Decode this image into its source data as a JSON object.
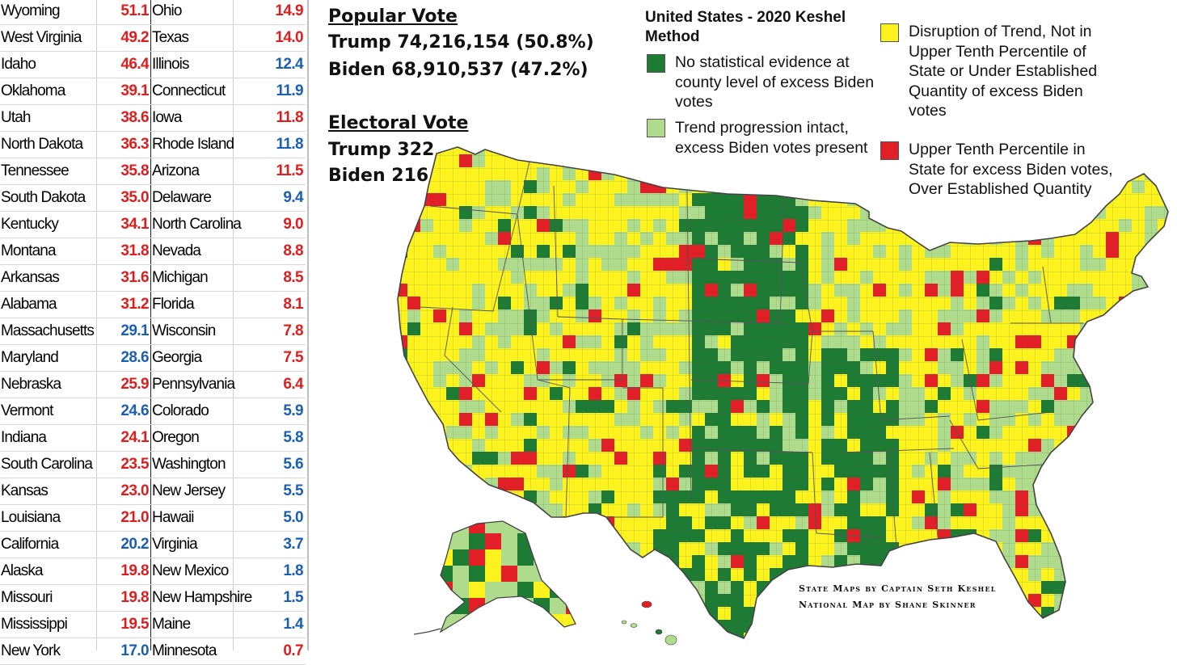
{
  "table": {
    "rows": [
      {
        "state1": "Wyoming",
        "value1": "51.1",
        "color1": "red",
        "state2": "Ohio",
        "value2": "14.9",
        "color2": "red"
      },
      {
        "state1": "West Virginia",
        "value1": "49.2",
        "color1": "red",
        "state2": "Texas",
        "value2": "14.0",
        "color2": "red"
      },
      {
        "state1": "Idaho",
        "value1": "46.4",
        "color1": "red",
        "state2": "Illinois",
        "value2": "12.4",
        "color2": "blue"
      },
      {
        "state1": "Oklahoma",
        "value1": "39.1",
        "color1": "red",
        "state2": "Connecticut",
        "value2": "11.9",
        "color2": "blue"
      },
      {
        "state1": "Utah",
        "value1": "38.6",
        "color1": "red",
        "state2": "Iowa",
        "value2": "11.8",
        "color2": "red"
      },
      {
        "state1": "North Dakota",
        "value1": "36.3",
        "color1": "red",
        "state2": "Rhode Island",
        "value2": "11.8",
        "color2": "blue"
      },
      {
        "state1": "Tennessee",
        "value1": "35.8",
        "color1": "red",
        "state2": "Arizona",
        "value2": "11.5",
        "color2": "red"
      },
      {
        "state1": "South Dakota",
        "value1": "35.0",
        "color1": "red",
        "state2": "Delaware",
        "value2": "9.4",
        "color2": "blue"
      },
      {
        "state1": "Kentucky",
        "value1": "34.1",
        "color1": "red",
        "state2": "North Carolina",
        "value2": "9.0",
        "color2": "red"
      },
      {
        "state1": "Montana",
        "value1": "31.8",
        "color1": "red",
        "state2": "Nevada",
        "value2": "8.8",
        "color2": "red"
      },
      {
        "state1": "Arkansas",
        "value1": "31.6",
        "color1": "red",
        "state2": "Michigan",
        "value2": "8.5",
        "color2": "red"
      },
      {
        "state1": "Alabama",
        "value1": "31.2",
        "color1": "red",
        "state2": "Florida",
        "value2": "8.1",
        "color2": "red"
      },
      {
        "state1": "Massachusetts",
        "value1": "29.1",
        "color1": "blue",
        "state2": "Wisconsin",
        "value2": "7.8",
        "color2": "red"
      },
      {
        "state1": "Maryland",
        "value1": "28.6",
        "color1": "blue",
        "state2": "Georgia",
        "value2": "7.5",
        "color2": "red"
      },
      {
        "state1": "Nebraska",
        "value1": "25.9",
        "color1": "red",
        "state2": "Pennsylvania",
        "value2": "6.4",
        "color2": "red"
      },
      {
        "state1": "Vermont",
        "value1": "24.6",
        "color1": "blue",
        "state2": "Colorado",
        "value2": "5.9",
        "color2": "blue"
      },
      {
        "state1": "Indiana",
        "value1": "24.1",
        "color1": "red",
        "state2": "Oregon",
        "value2": "5.8",
        "color2": "blue"
      },
      {
        "state1": "South Carolina",
        "value1": "23.5",
        "color1": "red",
        "state2": "Washington",
        "value2": "5.6",
        "color2": "blue"
      },
      {
        "state1": "Kansas",
        "value1": "23.0",
        "color1": "red",
        "state2": "New Jersey",
        "value2": "5.5",
        "color2": "blue"
      },
      {
        "state1": "Louisiana",
        "value1": "21.0",
        "color1": "red",
        "state2": "Hawaii",
        "value2": "5.0",
        "color2": "blue"
      },
      {
        "state1": "California",
        "value1": "20.2",
        "color1": "blue",
        "state2": "Virginia",
        "value2": "3.7",
        "color2": "blue"
      },
      {
        "state1": "Alaska",
        "value1": "19.8",
        "color1": "red",
        "state2": "New Mexico",
        "value2": "1.8",
        "color2": "blue"
      },
      {
        "state1": "Missouri",
        "value1": "19.8",
        "color1": "red",
        "state2": "New Hampshire",
        "value2": "1.5",
        "color2": "blue"
      },
      {
        "state1": "Mississippi",
        "value1": "19.5",
        "color1": "red",
        "state2": "Maine",
        "value2": "1.4",
        "color2": "blue"
      },
      {
        "state1": "New York",
        "value1": "17.0",
        "color1": "blue",
        "state2": "Minnesota",
        "value2": "0.7",
        "color2": "red"
      }
    ]
  },
  "popular_vote": {
    "heading": "Popular Vote",
    "trump": "Trump 74,216,154 (50.8%)",
    "biden": "Biden 68,910,537 (47.2%)"
  },
  "electoral_vote": {
    "heading": "Electoral Vote",
    "trump": "Trump 322",
    "biden": "Biden 216"
  },
  "legend": {
    "title": "United States - 2020 Keshel Method",
    "items": [
      {
        "key": "dark_green",
        "color": "#1e7b34",
        "text": "No statistical evidence at county level of excess Biden votes"
      },
      {
        "key": "light_green",
        "color": "#aedc8c",
        "text": "Trend progression intact, excess Biden votes present"
      },
      {
        "key": "yellow",
        "color": "#fbf21e",
        "text": "Disruption of Trend, Not in Upper Tenth Percentile of State or Under Established Quantity of excess Biden votes"
      },
      {
        "key": "red",
        "color": "#e21f26",
        "text": "Upper Tenth Percentile in State for excess Biden votes, Over Established Quantity"
      }
    ]
  },
  "credits": {
    "line1": "State Maps by Captain Seth Keshel",
    "line2": "National Map by Shane Skinner"
  },
  "colors": {
    "red_value": "#e01d1d",
    "blue_value": "#1a5fb4",
    "map_border": "#555555"
  }
}
